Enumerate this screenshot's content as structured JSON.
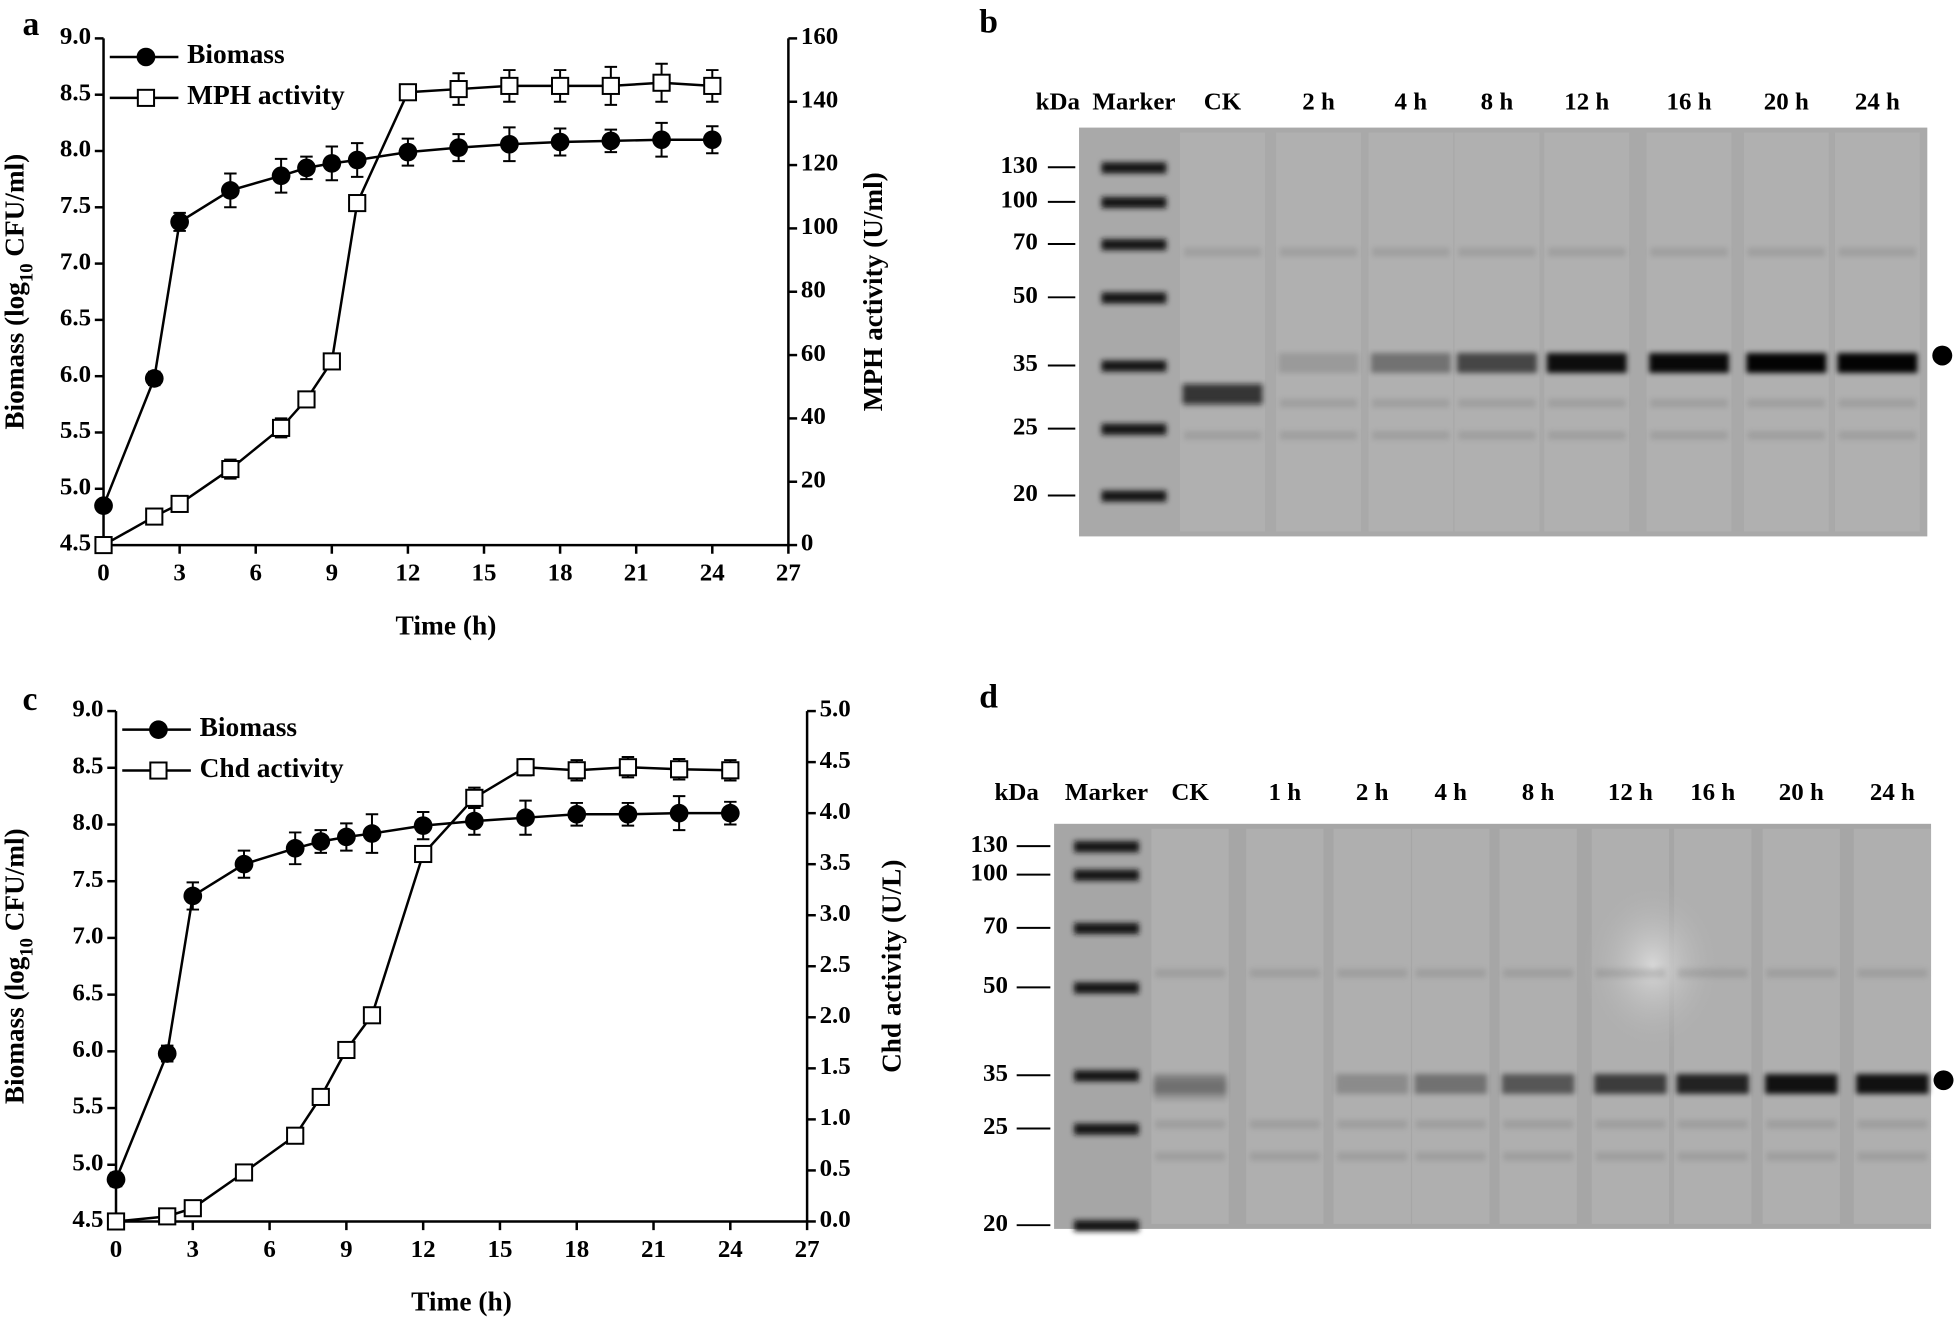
{
  "chart_data": [
    {
      "type": "line",
      "panel": "a",
      "xlabel": "Time (h)",
      "ylabel": [
        "Biomass (log",
        "10",
        " CFU/ml)"
      ],
      "y2label": "MPH activity (U/ml)",
      "x": [
        0,
        2,
        3,
        5,
        7,
        8,
        9,
        10,
        12,
        14,
        16,
        18,
        20,
        22,
        24
      ],
      "xlim": [
        0,
        27
      ],
      "xticks": [
        0,
        3,
        6,
        9,
        12,
        15,
        18,
        21,
        24,
        27
      ],
      "ylim": [
        4.5,
        9.0
      ],
      "yticks": [
        4.5,
        {
          "value": 5,
          "label": "5.0"
        },
        5.5,
        {
          "value": 6,
          "label": "6.0"
        },
        6.5,
        {
          "value": 7,
          "label": "7.0"
        },
        7.5,
        {
          "value": 8,
          "label": "8.0"
        },
        8.5,
        {
          "value": 9,
          "label": "9.0"
        }
      ],
      "y2lim": [
        0,
        160
      ],
      "y2ticks": [
        0,
        20,
        40,
        60,
        80,
        100,
        120,
        140,
        160
      ],
      "legend": "upper left",
      "series": [
        {
          "name": "Biomass",
          "color": "#000000",
          "marker": "circle",
          "axis": "y",
          "values": [
            4.85,
            5.98,
            7.37,
            7.65,
            7.78,
            7.85,
            7.89,
            7.92,
            7.99,
            8.03,
            8.06,
            8.08,
            8.09,
            8.1,
            8.1
          ],
          "errors": [
            0.05,
            0.06,
            0.08,
            0.15,
            0.15,
            0.1,
            0.15,
            0.15,
            0.12,
            0.12,
            0.15,
            0.12,
            0.1,
            0.15,
            0.12
          ]
        },
        {
          "name": "MPH activity",
          "color": "#000000",
          "marker": "square",
          "axis": "y2",
          "values": [
            0,
            9,
            13,
            24,
            37,
            46,
            58,
            108,
            143,
            144,
            145,
            145,
            145,
            146,
            145
          ],
          "errors": [
            1,
            2,
            2,
            3,
            3,
            2,
            2,
            2,
            2,
            5,
            5,
            5,
            6,
            6,
            5
          ]
        }
      ]
    },
    {
      "type": "line",
      "panel": "c",
      "xlabel": "Time (h)",
      "ylabel": [
        "Biomass (log",
        "10",
        " CFU/ml)"
      ],
      "y2label": "Chd activity (U/L)",
      "x": [
        0,
        2,
        3,
        5,
        7,
        8,
        9,
        10,
        12,
        14,
        16,
        18,
        20,
        22,
        24
      ],
      "xlim": [
        0,
        27
      ],
      "xticks": [
        0,
        3,
        6,
        9,
        12,
        15,
        18,
        21,
        24,
        27
      ],
      "ylim": [
        4.5,
        9.0
      ],
      "yticks": [
        4.5,
        {
          "value": 5,
          "label": "5.0"
        },
        5.5,
        {
          "value": 6,
          "label": "6.0"
        },
        6.5,
        {
          "value": 7,
          "label": "7.0"
        },
        7.5,
        {
          "value": 8,
          "label": "8.0"
        },
        8.5,
        {
          "value": 9,
          "label": "9.0"
        }
      ],
      "y2lim": [
        0,
        5
      ],
      "y2ticks": [
        {
          "value": 0,
          "label": "0.0"
        },
        0.5,
        {
          "value": 1,
          "label": "1.0"
        },
        1.5,
        {
          "value": 2,
          "label": "2.0"
        },
        2.5,
        {
          "value": 3,
          "label": "3.0"
        },
        3.5,
        {
          "value": 4,
          "label": "4.0"
        },
        4.5,
        {
          "value": 5,
          "label": "5.0"
        }
      ],
      "legend": "upper left",
      "series": [
        {
          "name": "Biomass",
          "color": "#000000",
          "marker": "circle",
          "axis": "y",
          "values": [
            4.87,
            5.98,
            7.37,
            7.65,
            7.79,
            7.85,
            7.89,
            7.92,
            7.99,
            8.03,
            8.06,
            8.09,
            8.09,
            8.1,
            8.1
          ],
          "errors": [
            0.06,
            0.07,
            0.12,
            0.12,
            0.14,
            0.1,
            0.12,
            0.17,
            0.12,
            0.12,
            0.15,
            0.1,
            0.1,
            0.15,
            0.1
          ]
        },
        {
          "name": "Chd activity",
          "color": "#000000",
          "marker": "square",
          "axis": "y2",
          "values": [
            0,
            0.05,
            0.13,
            0.48,
            0.84,
            1.22,
            1.68,
            2.02,
            3.6,
            4.15,
            4.45,
            4.42,
            4.45,
            4.43,
            4.42
          ],
          "errors": [
            0.02,
            0.03,
            0.03,
            0.03,
            0.03,
            0.03,
            0.03,
            0.03,
            0.03,
            0.1,
            0.08,
            0.1,
            0.1,
            0.1,
            0.1
          ]
        }
      ]
    }
  ],
  "gels": [
    {
      "panel": "b",
      "unit": "kDa",
      "lanes": [
        "Marker",
        "CK",
        "2 h",
        "4 h",
        "8 h",
        "12 h",
        "16 h",
        "20 h",
        "24 h"
      ],
      "markers": [
        130,
        100,
        70,
        50,
        35,
        25,
        20
      ]
    },
    {
      "panel": "d",
      "unit": "kDa",
      "lanes": [
        "Marker",
        "CK",
        "1 h",
        "2 h",
        "4 h",
        "8 h",
        "12 h",
        "16 h",
        "20 h",
        "24 h"
      ],
      "markers": [
        130,
        100,
        70,
        50,
        35,
        25,
        20
      ]
    }
  ]
}
